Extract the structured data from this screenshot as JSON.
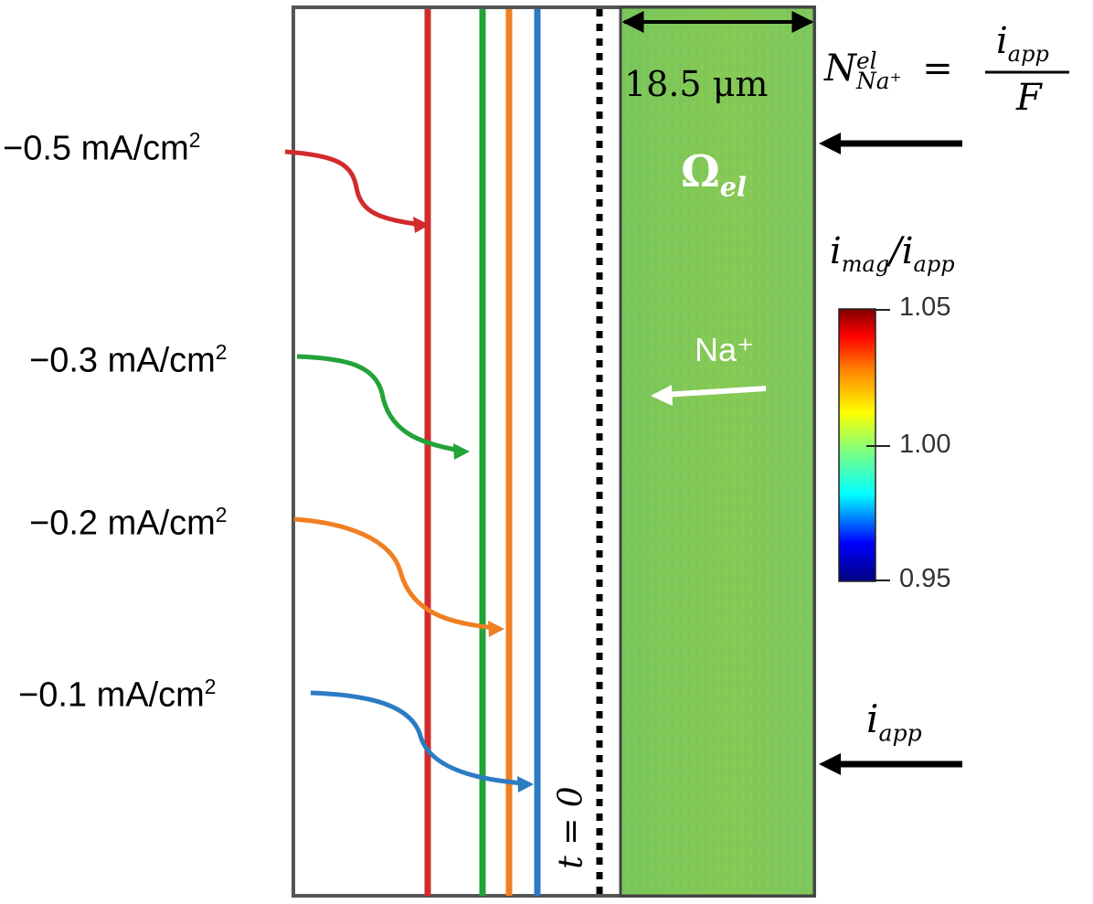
{
  "figure": {
    "domain_label": "Ω",
    "domain_sub": "el",
    "thickness": "18.5 μm",
    "ion_label": "Na⁺",
    "initial_time": "t = 0",
    "flux_eq": {
      "lhs_symbol": "N",
      "lhs_sup": "el",
      "lhs_sub": "Na⁺",
      "equals": "=",
      "numerator": "i",
      "numerator_sub": "app",
      "denominator": "F"
    },
    "applied_current": {
      "symbol": "i",
      "sub": "app"
    }
  },
  "interface_lines": [
    {
      "id": "l05",
      "label": "−0.5 mA/cm",
      "exp": "2",
      "color": "#d22b2b"
    },
    {
      "id": "l03",
      "label": "−0.3 mA/cm",
      "exp": "2",
      "color": "#23a238"
    },
    {
      "id": "l02",
      "label": "−0.2 mA/cm",
      "exp": "2",
      "color": "#f07f22"
    },
    {
      "id": "l01",
      "label": "−0.1 mA/cm",
      "exp": "2",
      "color": "#2b7cc2"
    }
  ],
  "colorbar": {
    "title_symbol": "i",
    "title_sub1": "mag",
    "title_slash": "/i",
    "title_sub2": "app",
    "ticks": [
      "1.05",
      "1.00",
      "0.95"
    ],
    "min": 0.95,
    "max": 1.05,
    "colors": [
      "#00007f",
      "#0000ff",
      "#00ffff",
      "#7fff7f",
      "#ffff00",
      "#ff7f00",
      "#ff0000",
      "#7f0000"
    ]
  }
}
